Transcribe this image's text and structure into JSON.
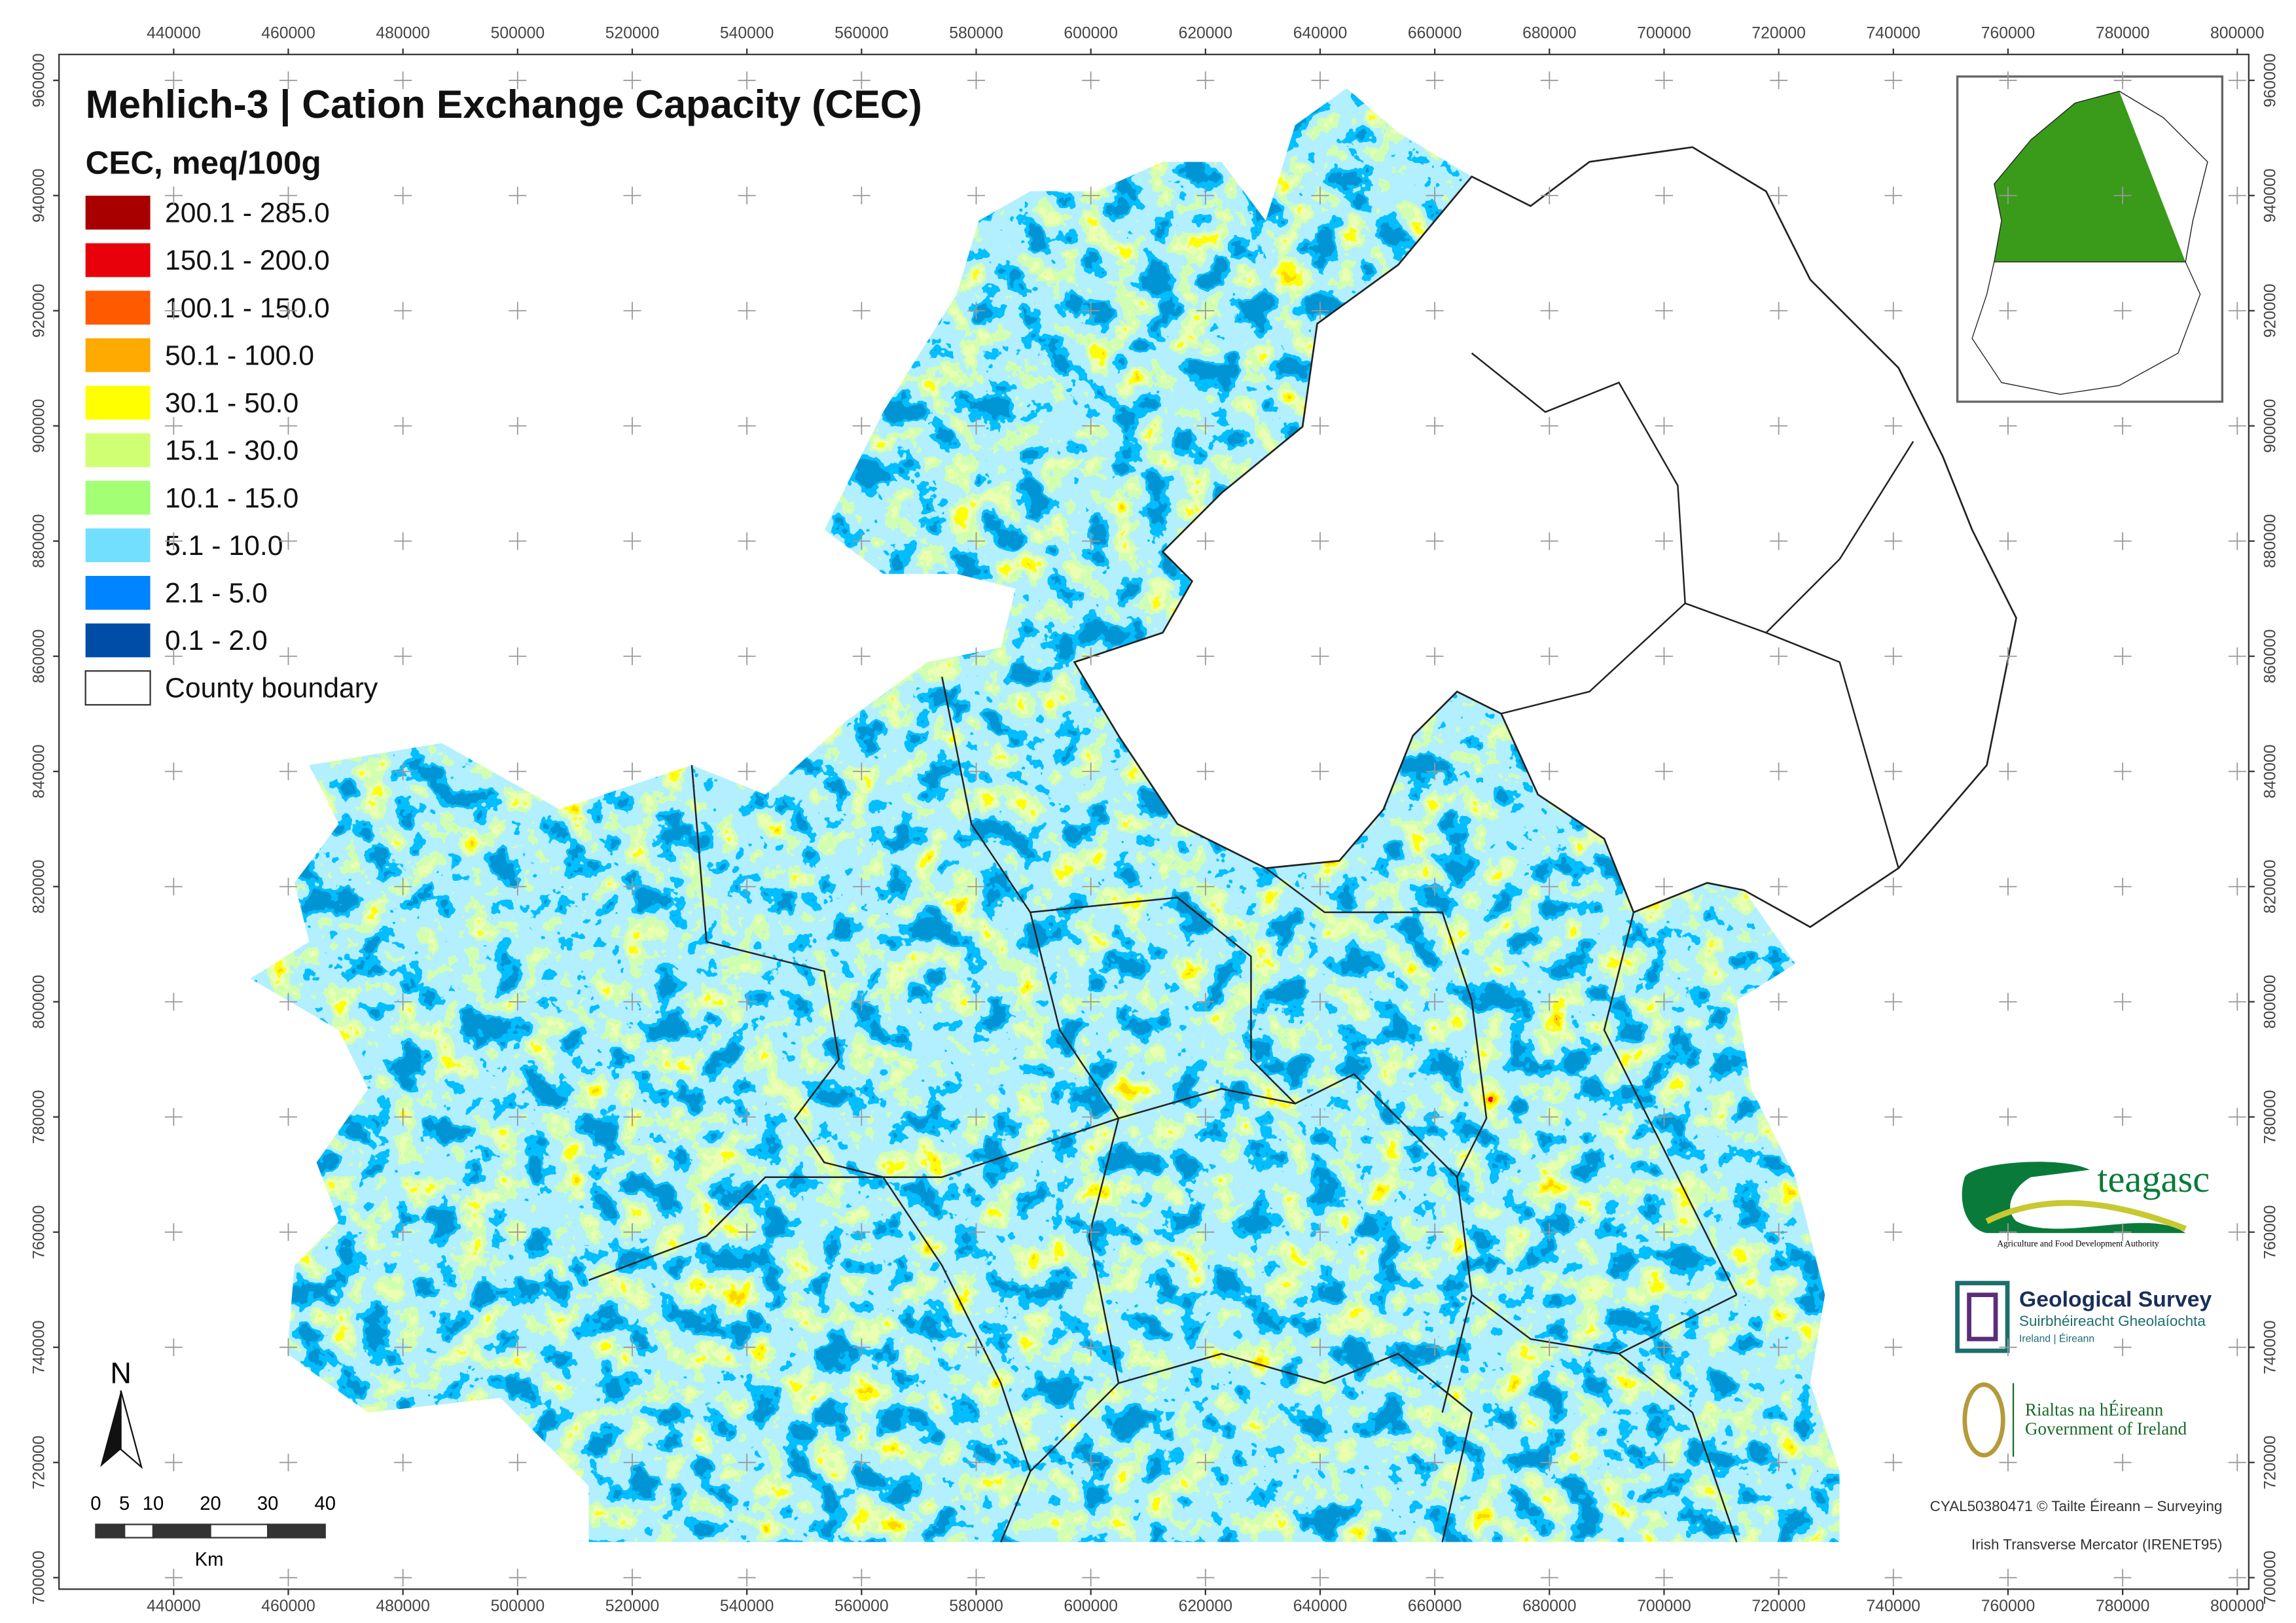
{
  "title": "Mehlich-3 | Cation Exchange Capacity (CEC)",
  "legend": {
    "title": "CEC, meq/100g",
    "items": [
      {
        "label": "200.1 - 285.0",
        "color": "#a80000"
      },
      {
        "label": "150.1 - 200.0",
        "color": "#e8000b"
      },
      {
        "label": "100.1 - 150.0",
        "color": "#ff5a00"
      },
      {
        "label": "50.1 - 100.0",
        "color": "#ffaa00"
      },
      {
        "label": "30.1 - 50.0",
        "color": "#ffff00"
      },
      {
        "label": "15.1 - 30.0",
        "color": "#d1ff73"
      },
      {
        "label": "10.1 - 15.0",
        "color": "#a3ff73"
      },
      {
        "label": "5.1 - 10.0",
        "color": "#73dfff"
      },
      {
        "label": "2.1 - 5.0",
        "color": "#0084ff"
      },
      {
        "label": "0.1 - 2.0",
        "color": "#004da8"
      },
      {
        "label": "County boundary",
        "color": "#ffffff"
      }
    ]
  },
  "axes": {
    "xlim": [
      420000,
      802000
    ],
    "ylim": [
      698000,
      964500
    ],
    "xticks": [
      440000,
      460000,
      480000,
      500000,
      520000,
      540000,
      560000,
      580000,
      600000,
      620000,
      640000,
      660000,
      680000,
      700000,
      720000,
      740000,
      760000,
      780000,
      800000
    ],
    "yticks": [
      700000,
      720000,
      740000,
      760000,
      780000,
      800000,
      820000,
      840000,
      860000,
      880000,
      900000,
      920000,
      940000,
      960000
    ]
  },
  "north_arrow": "N",
  "scale_bar": {
    "labels": [
      "0",
      "5",
      "10",
      "20",
      "30",
      "40"
    ],
    "unit": "Km"
  },
  "logos": {
    "teagasc": "teagasc",
    "teagasc_tagline": "Agriculture and Food Development Authority",
    "gsi_title": "Geological Survey",
    "gsi_sub1": "Suirbhéireacht Gheolaíochta",
    "gsi_sub2": "Ireland | Éireann",
    "gov1": "Rialtas na hÉireann",
    "gov2": "Government of Ireland"
  },
  "credits": [
    "CYAL50380471 © Tailte Éireann – Surveying",
    "Irish Transverse Mercator (IRENET95)"
  ]
}
